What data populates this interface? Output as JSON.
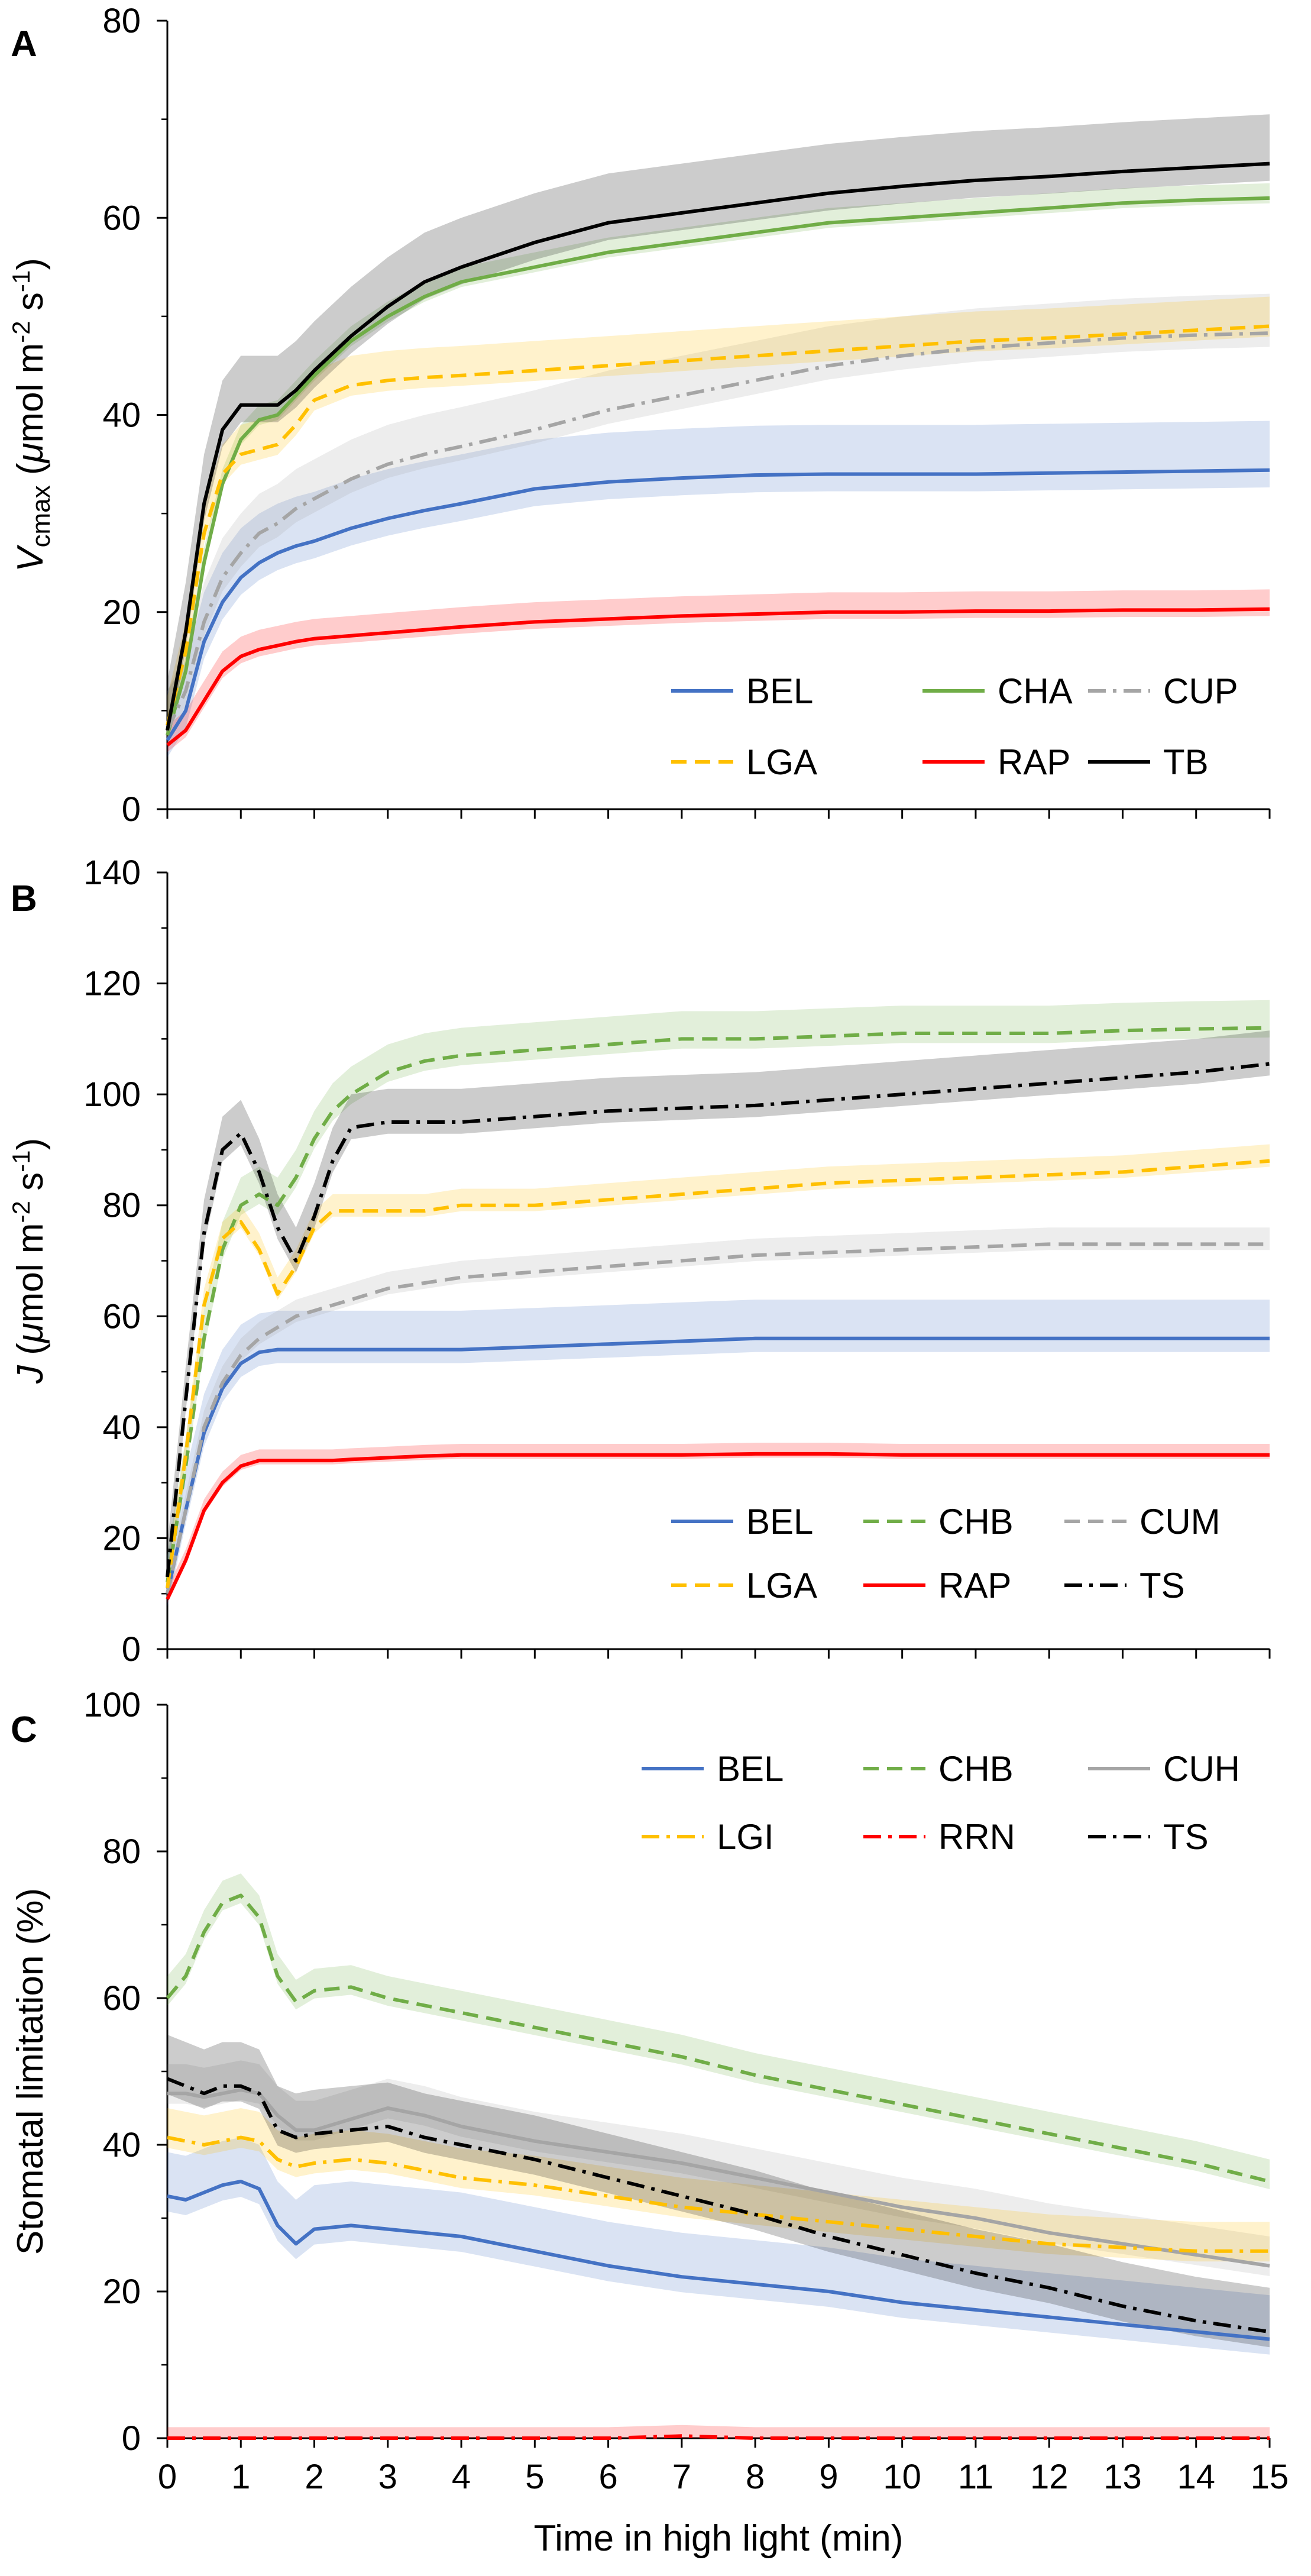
{
  "figure": {
    "xlabel": "Time in high light (min)",
    "x_ticks": [
      "0",
      "1",
      "2",
      "3",
      "4",
      "5",
      "6",
      "7",
      "8",
      "9",
      "10",
      "11",
      "12",
      "13",
      "14",
      "15"
    ]
  },
  "chart_data": [
    {
      "type": "line",
      "panel_letter": "A",
      "ylabel": "V_cmax (µmol m-2 s-1)",
      "ylabel_parts": {
        "v": "V",
        "sub": "cmax",
        "unit_open": " (",
        "mu": "μ",
        "mol": "mol m",
        "exp1": "-2",
        "s": " s",
        "exp2": "-1",
        "close": ")"
      },
      "xlim": [
        0,
        15
      ],
      "ylim": [
        0,
        80
      ],
      "y_ticks": [
        "0",
        "20",
        "40",
        "60",
        "80"
      ],
      "x": [
        0,
        0.25,
        0.5,
        0.75,
        1,
        1.25,
        1.5,
        1.75,
        2,
        2.5,
        3,
        3.5,
        4,
        5,
        6,
        7,
        8,
        9,
        10,
        11,
        12,
        13,
        14,
        15
      ],
      "series": [
        {
          "name": "BEL",
          "color": "#4472C4",
          "dash": "solid",
          "band": 5,
          "values": [
            7,
            10,
            17,
            21,
            23.5,
            25,
            26,
            26.7,
            27.2,
            28.5,
            29.5,
            30.3,
            31,
            32.5,
            33.2,
            33.6,
            33.9,
            34,
            34,
            34,
            34.1,
            34.2,
            34.3,
            34.4
          ]
        },
        {
          "name": "CHA",
          "color": "#70AD47",
          "dash": "solid",
          "band": 1.5,
          "values": [
            7.5,
            14,
            25,
            33,
            37.5,
            39.5,
            40,
            42,
            44,
            47.5,
            50,
            52,
            53.5,
            55,
            56.5,
            57.5,
            58.5,
            59.5,
            60,
            60.5,
            61,
            61.5,
            61.8,
            62
          ]
        },
        {
          "name": "CUP",
          "color": "#A5A5A5",
          "dash": "dashdot",
          "band": 4,
          "values": [
            8,
            12,
            19,
            23.5,
            26,
            28,
            29,
            30.5,
            31.5,
            33.5,
            35,
            36,
            36.8,
            38.5,
            40.5,
            42,
            43.5,
            45,
            46,
            46.8,
            47.3,
            47.8,
            48.1,
            48.3
          ]
        },
        {
          "name": "LGA",
          "color": "#FFC000",
          "dash": "dash",
          "band": 3,
          "values": [
            8.5,
            16,
            28,
            34,
            36,
            36.5,
            37,
            39,
            41.5,
            43,
            43.5,
            43.8,
            44,
            44.5,
            45,
            45.5,
            46,
            46.5,
            47,
            47.5,
            47.8,
            48.2,
            48.6,
            49
          ]
        },
        {
          "name": "RAP",
          "color": "#FF0000",
          "dash": "solid",
          "band": 2,
          "values": [
            6.5,
            8,
            11,
            14,
            15.5,
            16.2,
            16.6,
            17,
            17.3,
            17.6,
            17.9,
            18.2,
            18.5,
            19,
            19.3,
            19.6,
            19.8,
            20,
            20,
            20.1,
            20.1,
            20.2,
            20.2,
            20.3
          ]
        },
        {
          "name": "TB",
          "color": "#000000",
          "dash": "solid",
          "band": 5,
          "values": [
            8,
            18,
            31,
            38.5,
            41,
            41,
            41,
            42.5,
            44.5,
            48,
            51,
            53.5,
            55,
            57.5,
            59.5,
            60.5,
            61.5,
            62.5,
            63.2,
            63.8,
            64.2,
            64.7,
            65.1,
            65.5
          ]
        }
      ]
    },
    {
      "type": "line",
      "panel_letter": "B",
      "ylabel": "J (µmol m-2 s-1)",
      "ylabel_parts": {
        "v": "J",
        "sub": "",
        "unit_open": " (",
        "mu": "μ",
        "mol": "mol m",
        "exp1": "-2",
        "s": " s",
        "exp2": "-1",
        "close": ")"
      },
      "xlim": [
        0,
        15
      ],
      "ylim": [
        0,
        140
      ],
      "y_ticks": [
        "0",
        "20",
        "40",
        "60",
        "80",
        "100",
        "120",
        "140"
      ],
      "x": [
        0,
        0.25,
        0.5,
        0.75,
        1,
        1.25,
        1.5,
        1.75,
        2,
        2.25,
        2.5,
        3,
        3.5,
        4,
        5,
        6,
        7,
        8,
        9,
        10,
        11,
        12,
        13,
        14,
        15
      ],
      "series": [
        {
          "name": "BEL",
          "color": "#4472C4",
          "dash": "solid",
          "band": 7,
          "values": [
            10,
            25,
            39,
            47,
            51.5,
            53.5,
            54,
            54,
            54,
            54,
            54,
            54,
            54,
            54,
            54.5,
            55,
            55.5,
            56,
            56,
            56,
            56,
            56,
            56,
            56,
            56
          ]
        },
        {
          "name": "CHB",
          "color": "#70AD47",
          "dash": "dash",
          "band": 5,
          "values": [
            12,
            33,
            56,
            72,
            80,
            82,
            80,
            85,
            92,
            97,
            100,
            104,
            106,
            107,
            108,
            109,
            110,
            110,
            110.5,
            111,
            111,
            111,
            111.5,
            111.8,
            112
          ]
        },
        {
          "name": "CUM",
          "color": "#A5A5A5",
          "dash": "dash",
          "band": 3,
          "values": [
            10,
            25,
            40,
            48,
            53,
            56,
            58,
            60,
            61,
            62,
            63,
            65,
            66,
            67,
            68,
            69,
            70,
            71,
            71.5,
            72,
            72.5,
            73,
            73,
            73,
            73
          ]
        },
        {
          "name": "LGA",
          "color": "#FFC000",
          "dash": "dash",
          "band": 3,
          "values": [
            11,
            35,
            62,
            74,
            77,
            72,
            64,
            69,
            76,
            79,
            79,
            79,
            79,
            80,
            80,
            81,
            82,
            83,
            84,
            84.5,
            85,
            85.5,
            86,
            87,
            88
          ]
        },
        {
          "name": "RAP",
          "color": "#FF0000",
          "dash": "solid",
          "band": 2,
          "values": [
            9,
            16,
            25,
            30,
            33,
            34,
            34,
            34,
            34,
            34,
            34.2,
            34.5,
            34.8,
            35,
            35,
            35,
            35,
            35.2,
            35.2,
            35,
            35,
            35,
            35,
            35,
            35
          ]
        },
        {
          "name": "TS",
          "color": "#000000",
          "dash": "dashdot",
          "band": 6,
          "values": [
            13,
            45,
            75,
            90,
            93,
            86,
            76,
            70,
            78,
            88,
            94,
            95,
            95,
            95,
            96,
            97,
            97.5,
            98,
            99,
            100,
            101,
            102,
            103,
            104,
            105.5
          ]
        }
      ]
    },
    {
      "type": "line",
      "panel_letter": "C",
      "ylabel": "Stomatal limitation (%)",
      "xlim": [
        0,
        15
      ],
      "ylim": [
        0,
        100
      ],
      "y_ticks": [
        "0",
        "20",
        "40",
        "60",
        "80",
        "100"
      ],
      "x": [
        0,
        0.25,
        0.5,
        0.75,
        1,
        1.25,
        1.5,
        1.75,
        2,
        2.5,
        3,
        3.5,
        4,
        5,
        6,
        7,
        8,
        9,
        10,
        11,
        12,
        13,
        14,
        15
      ],
      "series": [
        {
          "name": "BEL",
          "color": "#4472C4",
          "dash": "solid",
          "band": 6,
          "values": [
            33,
            32.5,
            33.5,
            34.5,
            35,
            34,
            29,
            26.5,
            28.5,
            29,
            28.5,
            28,
            27.5,
            25.5,
            23.5,
            22,
            21,
            20,
            18.5,
            17.5,
            16.5,
            15.5,
            14.5,
            13.5
          ]
        },
        {
          "name": "CHB",
          "color": "#70AD47",
          "dash": "dash",
          "band": 3,
          "values": [
            60,
            63,
            69,
            73,
            74,
            71,
            63,
            59.5,
            61,
            61.5,
            60,
            59,
            58,
            56,
            54,
            52,
            49.5,
            47.5,
            45.5,
            43.5,
            41.5,
            39.5,
            37.5,
            35
          ]
        },
        {
          "name": "CUH",
          "color": "#A5A5A5",
          "dash": "solid",
          "band": 4,
          "values": [
            47,
            47,
            46.5,
            47,
            47.5,
            47,
            44,
            42,
            42,
            43.5,
            45,
            44,
            42.5,
            40.5,
            39,
            37.5,
            35.5,
            33.5,
            31.5,
            30,
            28,
            26.5,
            25,
            23.5
          ]
        },
        {
          "name": "LGI",
          "color": "#FFC000",
          "dash": "dashdot",
          "band": 4,
          "values": [
            41,
            40.5,
            40,
            40.5,
            41,
            40.5,
            38,
            37,
            37.5,
            38,
            37.5,
            36.5,
            35.5,
            34.5,
            33,
            31.5,
            30.5,
            29.5,
            28.5,
            27.5,
            26.5,
            26,
            25.5,
            25.5
          ]
        },
        {
          "name": "RRN",
          "color": "#FF0000",
          "dash": "dashdot",
          "band": 1.5,
          "values": [
            0,
            0,
            0,
            0,
            0,
            0,
            0,
            0,
            0,
            0,
            0,
            0,
            0,
            0,
            0,
            0.3,
            0,
            0,
            0,
            0,
            0,
            0,
            0,
            0
          ]
        },
        {
          "name": "TS",
          "color": "#000000",
          "dash": "dashdot",
          "band": 6,
          "values": [
            49,
            48,
            47,
            48,
            48,
            47,
            42,
            41,
            41.5,
            42,
            42.5,
            41,
            40,
            38,
            35.5,
            33,
            30.5,
            27.5,
            25,
            22.5,
            20.5,
            18,
            16,
            14.5
          ]
        }
      ]
    }
  ]
}
